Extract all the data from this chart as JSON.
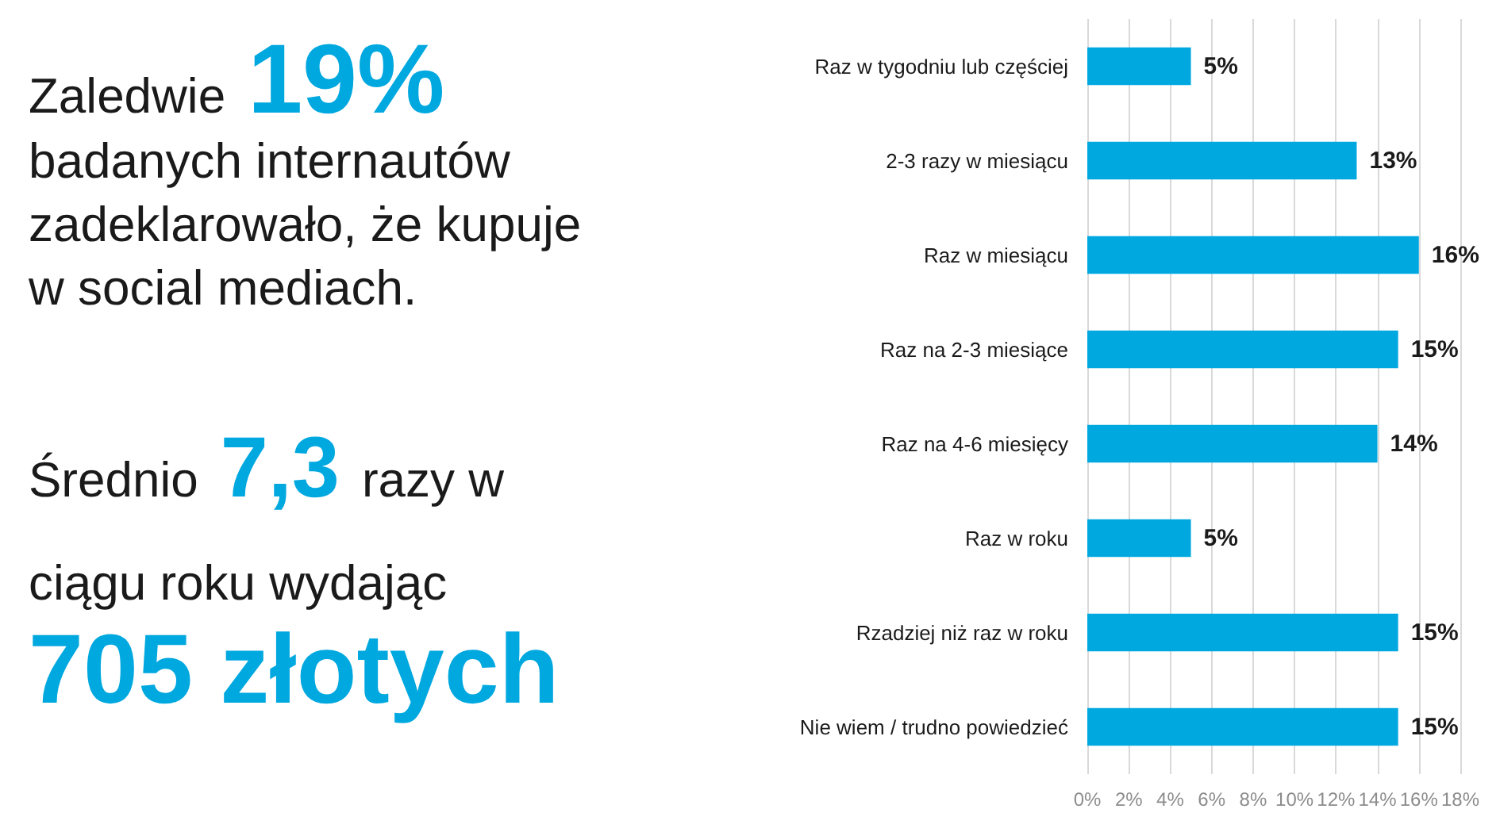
{
  "chart_data": [
    {
      "type": "other",
      "annotations": [
        "Zaledwie",
        "19%",
        "badanych internautów",
        "zadeklarowało, że kupuje",
        "w social mediach.",
        "Średnio",
        "7,3",
        "razy w",
        "ciągu roku wydając",
        "705 złotych"
      ]
    },
    {
      "type": "bar",
      "orientation": "horizontal",
      "categories": [
        "Raz w tygodniu lub częściej",
        "2-3 razy w miesiącu",
        "Raz w miesiącu",
        "Raz na 2-3 miesiące",
        "Raz na 4-6 miesięcy",
        "Raz w roku",
        "Rzadziej niż raz w roku",
        "Nie wiem / trudno powiedzieć"
      ],
      "values": [
        5,
        13,
        16,
        15,
        14,
        5,
        15,
        15
      ],
      "value_labels": [
        "5%",
        "13%",
        "16%",
        "15%",
        "14%",
        "5%",
        "15%",
        "15%"
      ],
      "color": "#00a8e0",
      "xlim": [
        0,
        18
      ],
      "xticks": [
        {
          "value": 0,
          "label": "0%"
        },
        {
          "value": 2,
          "label": "2%"
        },
        {
          "value": 4,
          "label": "4%"
        },
        {
          "value": 6,
          "label": "6%"
        },
        {
          "value": 8,
          "label": "8%"
        },
        {
          "value": 10,
          "label": "10%"
        },
        {
          "value": 12,
          "label": "12%"
        },
        {
          "value": 14,
          "label": "14%"
        },
        {
          "value": 16,
          "label": "16%"
        },
        {
          "value": 18,
          "label": "18%"
        }
      ],
      "grid": "x"
    }
  ]
}
